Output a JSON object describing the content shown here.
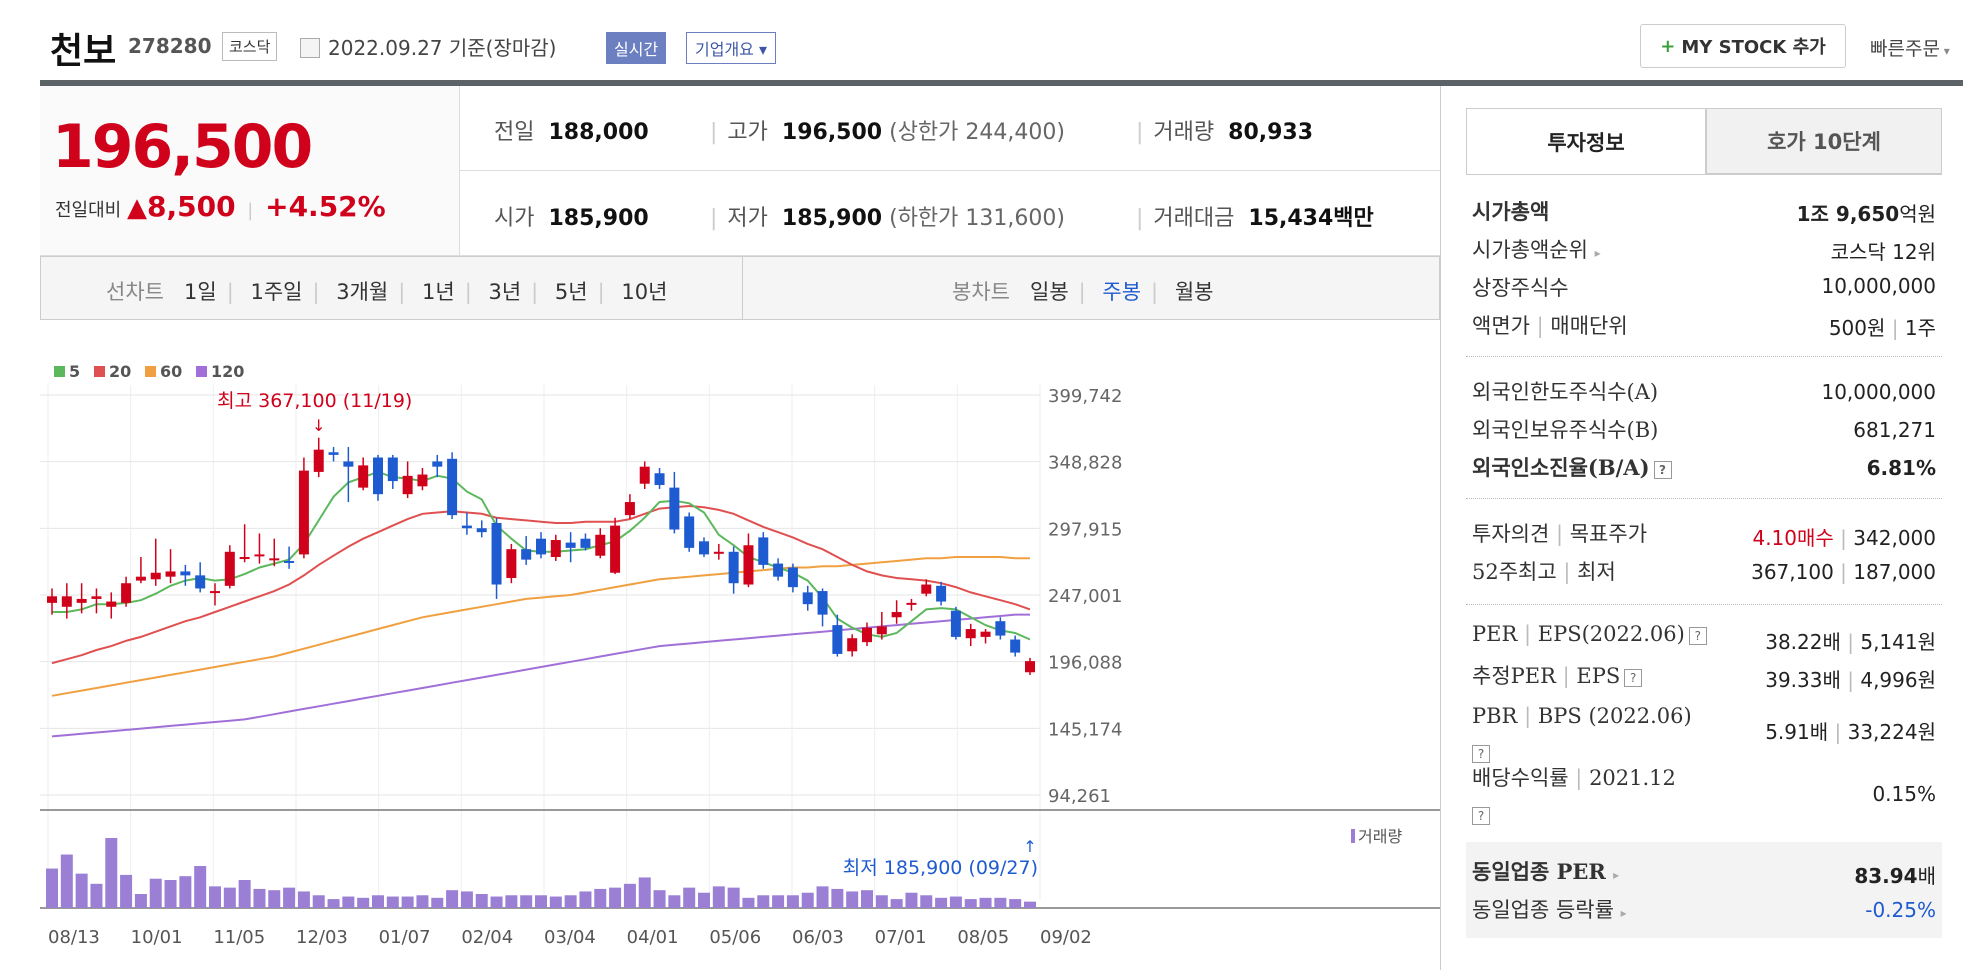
{
  "header": {
    "name": "천보",
    "code": "278280",
    "market": "코스닥",
    "date": "2022.09.27",
    "basis": "기준(장마감)",
    "realtime": "실시간",
    "company_overview": "기업개요",
    "my_stock": "MY STOCK 추가",
    "quick_order": "빠른주문"
  },
  "price": {
    "current": "196,500",
    "diff_label": "전일대비",
    "diff": "8,500",
    "rate": "+4.52%"
  },
  "stats": {
    "prev_label": "전일",
    "prev": "188,000",
    "high_label": "고가",
    "high": "196,500",
    "upper_label": "(상한가",
    "upper": "244,400)",
    "vol_label": "거래량",
    "vol": "80,933",
    "open_label": "시가",
    "open": "185,900",
    "low_label": "저가",
    "low": "185,900",
    "lower_label": "(하한가",
    "lower": "131,600)",
    "amt_label": "거래대금",
    "amt": "15,434",
    "amt_unit": "백만"
  },
  "periods": {
    "line_label": "선차트",
    "line": [
      "1일",
      "1주일",
      "3개월",
      "1년",
      "3년",
      "5년",
      "10년"
    ],
    "candle_label": "봉차트",
    "candle": [
      "일봉",
      "주봉",
      "월봉"
    ],
    "candle_active": "주봉"
  },
  "tabs": {
    "invest": "투자정보",
    "hoga": "호가 10단계"
  },
  "info": {
    "mcap_label": "시가총액",
    "mcap_a": "1조 9,650",
    "mcap_b": "억원",
    "rank_label": "시가총액순위",
    "rank": "코스닥 12위",
    "shares_label": "상장주식수",
    "shares": "10,000,000",
    "par_label": "액면가",
    "unit_label": "매매단위",
    "par": "500원",
    "unit": "1주",
    "foreign_limit_label": "외국인한도주식수(A)",
    "foreign_limit": "10,000,000",
    "foreign_hold_label": "외국인보유주식수(B)",
    "foreign_hold": "681,271",
    "foreign_rate_label": "외국인소진율(B/A)",
    "foreign_rate": "6.81%",
    "opinion_label": "투자의견",
    "target_label": "목표주가",
    "opinion": "4.10매수",
    "target": "342,000",
    "w52_label": "52주최고",
    "w52_low_label": "최저",
    "w52_high": "367,100",
    "w52_low": "187,000",
    "per_label": "PER",
    "eps_label": "EPS(2022.06)",
    "per": "38.22배",
    "eps": "5,141원",
    "eper_label": "추정PER",
    "eeps_label": "EPS",
    "eper": "39.33배",
    "eeps": "4,996원",
    "pbr_label": "PBR",
    "bps_label": "BPS (2022.06)",
    "pbr": "5.91배",
    "bps": "33,224원",
    "div_label": "배당수익률",
    "div_year": "2021.12",
    "div": "0.15%",
    "ind_per_label": "동일업종 PER",
    "ind_per": "83.94",
    "ind_per_unit": "배",
    "ind_rate_label": "동일업종 등락률",
    "ind_rate": "-0.25%"
  },
  "colors": {
    "up": "#d0021b",
    "down": "#1f5bd0",
    "ma5": "#5cb85c",
    "ma20": "#e05050",
    "ma60": "#f0a040",
    "ma120": "#a070d8",
    "volume": "#9b7fd4"
  },
  "chart_data": {
    "type": "candlestick",
    "legend": [
      "5",
      "20",
      "60",
      "120"
    ],
    "y_ticks": [
      "399,742",
      "348,828",
      "297,915",
      "247,001",
      "196,088",
      "145,174",
      "94,261"
    ],
    "ylim": [
      94261,
      399742
    ],
    "x_ticks": [
      "08/13",
      "10/01",
      "11/05",
      "12/03",
      "01/07",
      "02/04",
      "03/04",
      "04/01",
      "05/06",
      "06/03",
      "07/01",
      "08/05",
      "09/02"
    ],
    "volume_label": "거래량",
    "max_annotation": "최고 367,100 (11/19)",
    "min_annotation": "최저 185,900 (09/27)",
    "candles": [
      [
        241000,
        246000,
        232000,
        252000
      ],
      [
        238000,
        246000,
        229000,
        256000
      ],
      [
        241000,
        244000,
        233000,
        256000
      ],
      [
        244000,
        246000,
        233000,
        252000
      ],
      [
        238000,
        242000,
        229000,
        249000
      ],
      [
        241000,
        256000,
        238000,
        261000
      ],
      [
        258000,
        261000,
        256000,
        276000
      ],
      [
        259000,
        264000,
        254000,
        290000
      ],
      [
        261000,
        265000,
        256000,
        282000
      ],
      [
        265000,
        262000,
        254000,
        270000
      ],
      [
        262000,
        252000,
        249000,
        272000
      ],
      [
        249000,
        250000,
        239000,
        256000
      ],
      [
        254000,
        280000,
        252000,
        285000
      ],
      [
        275000,
        276000,
        272000,
        301000
      ],
      [
        277000,
        278000,
        271000,
        294000
      ],
      [
        275000,
        275000,
        269000,
        290000
      ],
      [
        273000,
        272000,
        267000,
        284000
      ],
      [
        278000,
        342000,
        275000,
        352000
      ],
      [
        341000,
        358000,
        337000,
        367100
      ],
      [
        356000,
        354000,
        349000,
        360000
      ],
      [
        349000,
        345000,
        318000,
        360000
      ],
      [
        329000,
        346000,
        327000,
        352000
      ],
      [
        352000,
        324000,
        319000,
        354000
      ],
      [
        352000,
        334000,
        328000,
        354000
      ],
      [
        324000,
        338000,
        321000,
        349000
      ],
      [
        330000,
        339000,
        327000,
        344000
      ],
      [
        349000,
        345000,
        337000,
        354000
      ],
      [
        351000,
        308000,
        305000,
        356000
      ],
      [
        300000,
        298000,
        293000,
        310000
      ],
      [
        298000,
        295000,
        291000,
        304000
      ],
      [
        302000,
        255000,
        244000,
        306000
      ],
      [
        260000,
        282000,
        256000,
        286000
      ],
      [
        282000,
        274000,
        270000,
        292000
      ],
      [
        290000,
        278000,
        275000,
        295000
      ],
      [
        276000,
        289000,
        273000,
        293000
      ],
      [
        287000,
        283000,
        272000,
        295000
      ],
      [
        290000,
        283000,
        281000,
        294000
      ],
      [
        277000,
        293000,
        275000,
        298000
      ],
      [
        264000,
        300000,
        263000,
        306000
      ],
      [
        308000,
        318000,
        305000,
        324000
      ],
      [
        332000,
        345000,
        328000,
        349000
      ],
      [
        340000,
        331000,
        328000,
        344000
      ],
      [
        329000,
        297000,
        294000,
        341000
      ],
      [
        307000,
        283000,
        280000,
        310000
      ],
      [
        288000,
        278000,
        276000,
        291000
      ],
      [
        279000,
        280000,
        274000,
        286000
      ],
      [
        280000,
        256000,
        248000,
        284000
      ],
      [
        255000,
        285000,
        253000,
        294000
      ],
      [
        291000,
        270000,
        267000,
        295000
      ],
      [
        271000,
        261000,
        258000,
        275000
      ],
      [
        268000,
        253000,
        249000,
        271000
      ],
      [
        249000,
        240000,
        235000,
        254000
      ],
      [
        250000,
        232000,
        223000,
        252000
      ],
      [
        224000,
        202000,
        200000,
        232000
      ],
      [
        204000,
        214000,
        200000,
        217000
      ],
      [
        211000,
        222000,
        208000,
        226000
      ],
      [
        217000,
        223000,
        213000,
        234000
      ],
      [
        230000,
        234000,
        225000,
        243000
      ],
      [
        240000,
        241000,
        235000,
        244000
      ],
      [
        248000,
        255000,
        246000,
        259000
      ],
      [
        254000,
        242000,
        239000,
        257000
      ],
      [
        235000,
        215000,
        213000,
        238000
      ],
      [
        214000,
        221000,
        208000,
        225000
      ],
      [
        215000,
        219000,
        210000,
        221000
      ],
      [
        227000,
        216000,
        213000,
        230000
      ],
      [
        213000,
        203000,
        200000,
        216000
      ],
      [
        188000,
        196500,
        185900,
        199000
      ]
    ],
    "volume": [
      31,
      42,
      27,
      19,
      55,
      26,
      11,
      23,
      22,
      25,
      33,
      17,
      16,
      22,
      15,
      14,
      16,
      13,
      10,
      7,
      9,
      8,
      10,
      9,
      9,
      10,
      8,
      14,
      13,
      11,
      9,
      10,
      10,
      10,
      9,
      10,
      13,
      15,
      16,
      19,
      24,
      14,
      10,
      16,
      12,
      17,
      16,
      8,
      10,
      10,
      10,
      12,
      17,
      15,
      13,
      14,
      10,
      7,
      12,
      10,
      8,
      9,
      7,
      8,
      8,
      7,
      5
    ],
    "ma5": [
      234000,
      234000,
      236000,
      240000,
      240000,
      241000,
      243000,
      248000,
      254000,
      258000,
      260000,
      258000,
      259000,
      263000,
      268000,
      271000,
      274000,
      286000,
      304000,
      322000,
      333000,
      337000,
      341000,
      337000,
      336000,
      334000,
      338000,
      336000,
      326000,
      320000,
      300000,
      290000,
      281000,
      280000,
      280000,
      281000,
      282000,
      285000,
      288000,
      296000,
      306000,
      318000,
      319000,
      317000,
      310000,
      293000,
      285000,
      276000,
      272000,
      268000,
      264000,
      258000,
      245000,
      229000,
      222000,
      217000,
      215000,
      218000,
      227000,
      236000,
      237000,
      236000,
      230000,
      224000,
      220000,
      218000,
      213000
    ],
    "ma20": [
      195000,
      198000,
      201000,
      205000,
      208000,
      212000,
      215000,
      219000,
      223000,
      227000,
      230000,
      234000,
      238000,
      242000,
      246000,
      250000,
      255000,
      262000,
      270000,
      277000,
      284000,
      290000,
      295000,
      300000,
      305000,
      309000,
      310000,
      311000,
      310000,
      309000,
      306000,
      305000,
      304000,
      303000,
      302000,
      302000,
      303000,
      303000,
      303000,
      305000,
      309000,
      313000,
      314000,
      315000,
      314000,
      312000,
      309000,
      304000,
      299000,
      295000,
      291000,
      286000,
      282000,
      276000,
      270000,
      265000,
      262000,
      260000,
      259000,
      258000,
      256000,
      253000,
      249000,
      246000,
      243000,
      240000,
      236000
    ],
    "ma60": [
      170000,
      172000,
      174000,
      176000,
      178000,
      180000,
      182000,
      184000,
      186000,
      188000,
      190000,
      192000,
      194000,
      196000,
      198000,
      200000,
      203000,
      206000,
      209000,
      212000,
      215000,
      218000,
      221000,
      224000,
      227000,
      230000,
      232000,
      234000,
      236000,
      238000,
      240000,
      242000,
      244000,
      245000,
      246000,
      247000,
      249000,
      251000,
      253000,
      255000,
      257000,
      259000,
      260000,
      261000,
      262000,
      263000,
      264000,
      265000,
      266000,
      267000,
      268000,
      268000,
      269000,
      269000,
      270000,
      271000,
      272000,
      273000,
      274000,
      275000,
      275000,
      276000,
      276000,
      276000,
      276000,
      275000,
      275000
    ],
    "ma120": [
      139000,
      140000,
      141000,
      142000,
      143000,
      144000,
      145000,
      146000,
      147000,
      148000,
      149000,
      150000,
      151000,
      152000,
      154000,
      156000,
      158000,
      160000,
      162000,
      164000,
      166000,
      168000,
      170000,
      172000,
      174000,
      176000,
      178000,
      180000,
      182000,
      184000,
      186000,
      188000,
      190000,
      192000,
      194000,
      196000,
      198000,
      200000,
      202000,
      204000,
      206000,
      208000,
      209000,
      210000,
      211000,
      212000,
      213000,
      214000,
      215000,
      216000,
      217000,
      218000,
      219000,
      220000,
      221000,
      222000,
      223000,
      224000,
      225000,
      226000,
      227000,
      228000,
      229000,
      230000,
      231000,
      232000,
      232000
    ]
  }
}
